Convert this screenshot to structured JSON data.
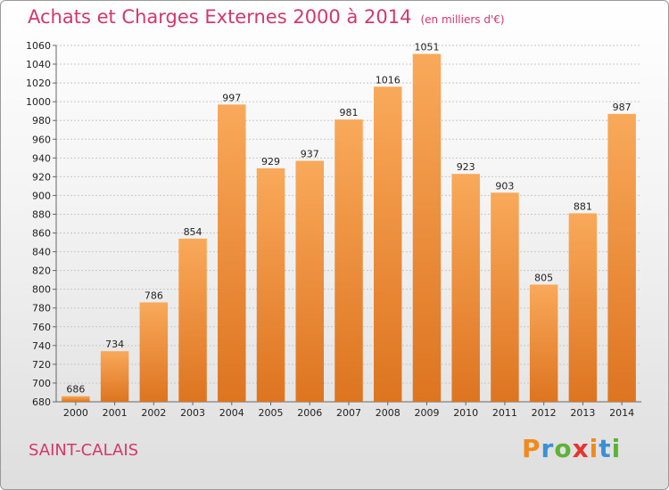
{
  "chart_data": {
    "type": "bar",
    "title": "Achats et Charges Externes 2000 à 2014",
    "subtitle": "(en milliers d'€)",
    "categories": [
      "2000",
      "2001",
      "2002",
      "2003",
      "2004",
      "2005",
      "2006",
      "2007",
      "2008",
      "2009",
      "2010",
      "2011",
      "2012",
      "2013",
      "2014"
    ],
    "values": [
      686,
      734,
      786,
      854,
      997,
      929,
      937,
      981,
      1016,
      1051,
      923,
      903,
      805,
      881,
      987
    ],
    "ylim": [
      680,
      1060
    ],
    "yticks": [
      680,
      700,
      720,
      740,
      760,
      780,
      800,
      820,
      840,
      860,
      880,
      900,
      920,
      940,
      960,
      980,
      1000,
      1020,
      1040,
      1060
    ],
    "grid": true,
    "bar_color": "#f0913a"
  },
  "footer": {
    "commune": "SAINT-CALAIS",
    "logo_letters": [
      "P",
      "r",
      "o",
      "x",
      "i",
      "t",
      "i"
    ],
    "logo_colors": [
      "#f08a1c",
      "#3a8fd6",
      "#5cb338",
      "#e6352f",
      "#f08a1c",
      "#3a8fd6",
      "#5cb338"
    ]
  }
}
